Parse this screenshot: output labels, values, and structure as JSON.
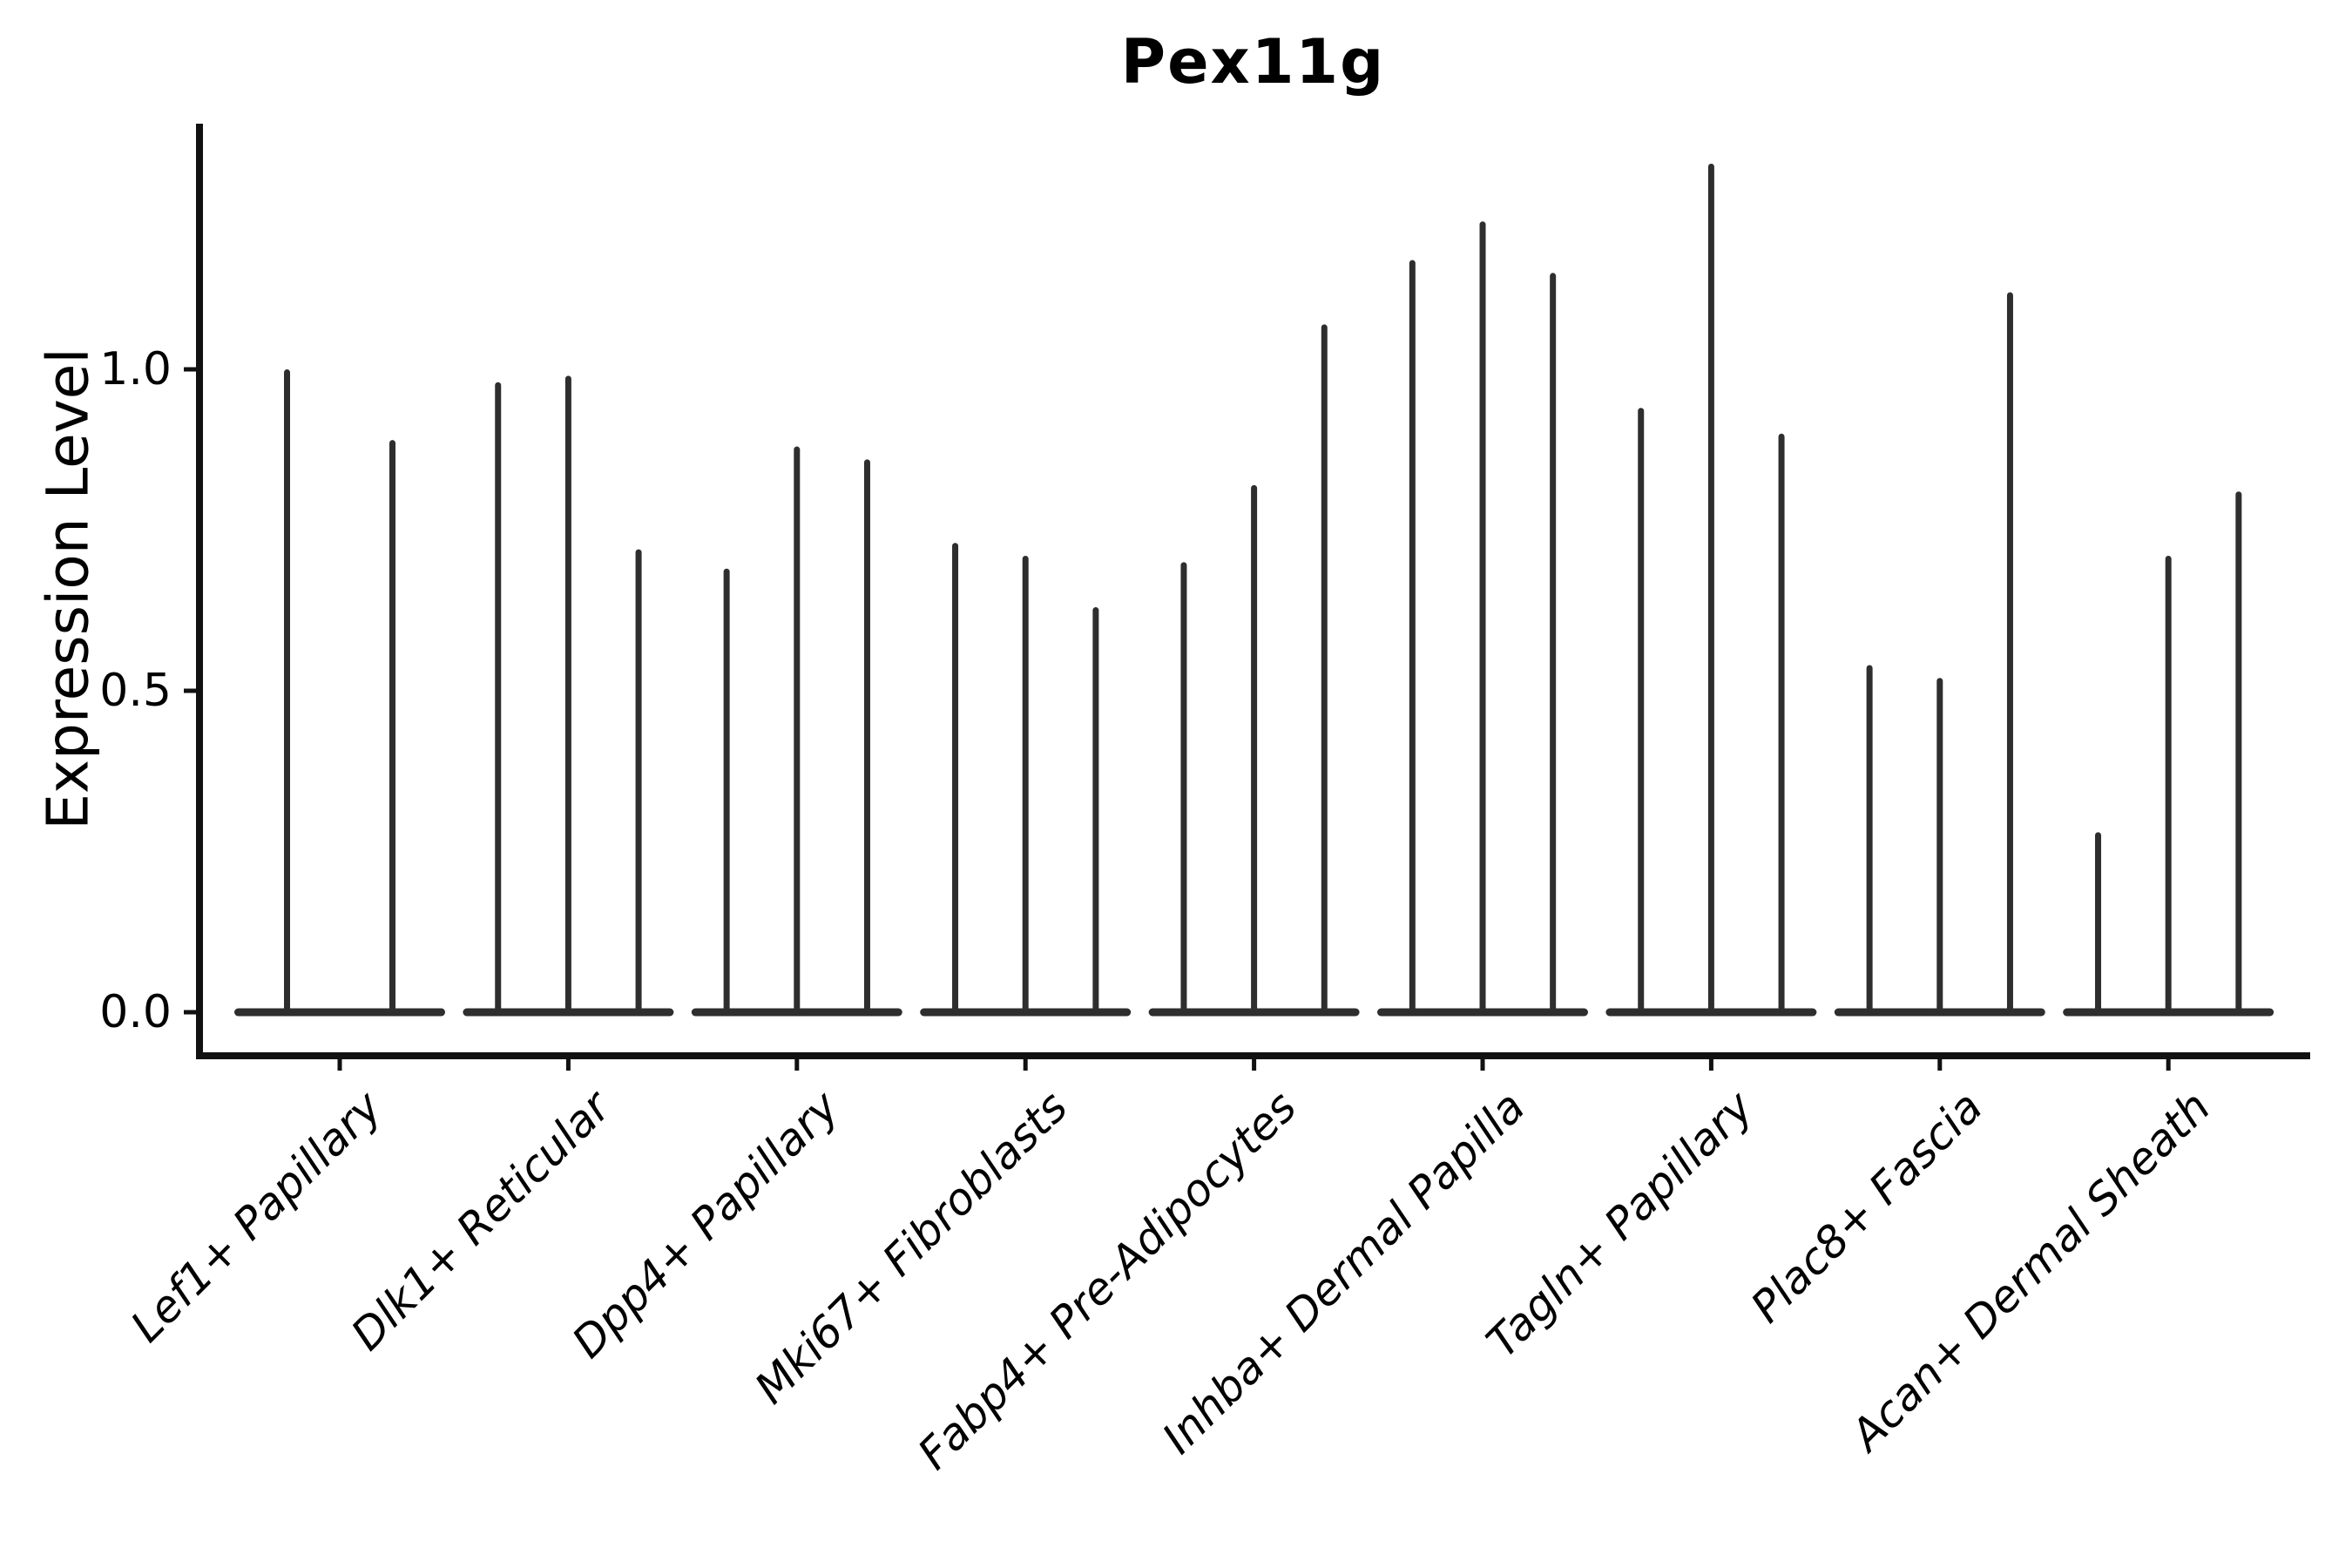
{
  "title": "Pex11g",
  "colors": {
    "violin": "#2e2e2e",
    "axis": "#111111",
    "text": "#000000",
    "background": "#ffffff"
  },
  "chart_data": {
    "type": "violin",
    "title": "Pex11g",
    "xlabel": "",
    "ylabel": "Expression Level",
    "ylim": [
      -0.072,
      1.382
    ],
    "grid": false,
    "legend": null,
    "yticks": [
      {
        "label": "0.0",
        "value": 0.0
      },
      {
        "label": "0.5",
        "value": 0.5
      },
      {
        "label": "1.0",
        "value": 1.0
      }
    ],
    "categories": [
      "Lef1+ Papillary",
      "Dlk1+ Reticular",
      "Dpp4+ Papillary",
      "Mki67+ Fibroblasts",
      "Fabp4+ Pre-Adipocytes",
      "Inhba+ Dermal Papilla",
      "Tagln+ Papillary",
      "Plac8+ Fascia",
      "Acan+ Dermal Sheath"
    ],
    "groups": [
      {
        "label": "Lef1+ Papillary",
        "violin_max_values": [
          1.0,
          0.89
        ]
      },
      {
        "label": "Dlk1+ Reticular",
        "violin_max_values": [
          0.98,
          0.99,
          0.72
        ]
      },
      {
        "label": "Dpp4+ Papillary",
        "violin_max_values": [
          0.69,
          0.88,
          0.86
        ]
      },
      {
        "label": "Mki67+ Fibroblasts",
        "violin_max_values": [
          0.73,
          0.71,
          0.63
        ]
      },
      {
        "label": "Fabp4+ Pre-Adipocytes",
        "violin_max_values": [
          0.7,
          0.82,
          1.07
        ]
      },
      {
        "label": "Inhba+ Dermal Papilla",
        "violin_max_values": [
          1.17,
          1.23,
          1.15
        ]
      },
      {
        "label": "Tagln+ Papillary",
        "violin_max_values": [
          0.94,
          1.32,
          0.9
        ]
      },
      {
        "label": "Plac8+ Fascia",
        "violin_max_values": [
          0.54,
          0.52,
          1.12
        ]
      },
      {
        "label": "Acan+ Dermal Sheath",
        "violin_max_values": [
          0.28,
          0.71,
          0.81
        ]
      }
    ],
    "description": "Violin plot; each cell-type group shows 2-3 very thin violins whose mass is concentrated at 0 (flat baseline lobes) with a thin spike up to the max expression value."
  }
}
